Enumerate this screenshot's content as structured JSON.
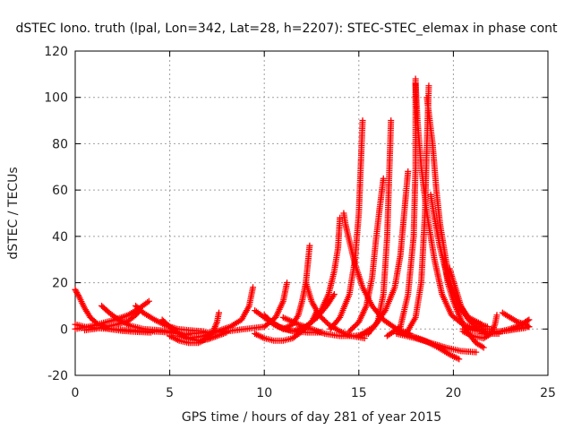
{
  "chart_data": {
    "type": "scatter",
    "title": "dSTEC Iono. truth (lpal, Lon=342, Lat=28, h=2207): STEC-STEC_elemax in phase cont",
    "xlabel": "GPS time / hours of day 281 of year 2015",
    "ylabel": "dSTEC  / TECUs",
    "xlim": [
      0,
      25
    ],
    "ylim": [
      -20,
      120
    ],
    "xticks": [
      0,
      5,
      10,
      15,
      20,
      25
    ],
    "yticks": [
      -20,
      0,
      20,
      40,
      60,
      80,
      100,
      120
    ],
    "grid": true,
    "marker": "+",
    "color": "#ff0000",
    "series": [
      {
        "points": [
          [
            0.0,
            2
          ],
          [
            0.5,
            1
          ],
          [
            1.0,
            0.5
          ],
          [
            1.5,
            0.2
          ],
          [
            2.0,
            0
          ],
          [
            2.5,
            -0.3
          ],
          [
            3.0,
            -0.5
          ],
          [
            3.5,
            -0.8
          ],
          [
            4.0,
            -1
          ],
          [
            4.5,
            -1.2
          ],
          [
            5.0,
            -1.5
          ],
          [
            5.5,
            -2
          ],
          [
            6.0,
            -2.5
          ]
        ]
      },
      {
        "points": [
          [
            0.0,
            17
          ],
          [
            0.2,
            14
          ],
          [
            0.5,
            9
          ],
          [
            0.8,
            5
          ],
          [
            1.2,
            2
          ],
          [
            1.8,
            0
          ],
          [
            2.5,
            -0.8
          ],
          [
            3.2,
            -1.2
          ],
          [
            4.0,
            -1.5
          ]
        ]
      },
      {
        "points": [
          [
            0.0,
            0
          ],
          [
            0.7,
            1
          ],
          [
            1.4,
            2.5
          ],
          [
            2.1,
            4
          ],
          [
            2.8,
            6
          ],
          [
            3.4,
            9
          ],
          [
            3.9,
            12
          ]
        ]
      },
      {
        "points": [
          [
            1.4,
            10
          ],
          [
            1.8,
            7
          ],
          [
            2.3,
            4
          ],
          [
            2.9,
            1.5
          ],
          [
            3.6,
            0
          ],
          [
            4.4,
            -0.5
          ],
          [
            5.2,
            -1
          ]
        ]
      },
      {
        "points": [
          [
            0.5,
            -0.5
          ],
          [
            1.0,
            0
          ],
          [
            1.6,
            1
          ],
          [
            2.2,
            2
          ],
          [
            2.8,
            3.5
          ],
          [
            3.2,
            6
          ],
          [
            3.4,
            8
          ]
        ]
      },
      {
        "points": [
          [
            3.2,
            10
          ],
          [
            3.6,
            7
          ],
          [
            4.2,
            4
          ],
          [
            4.8,
            1.5
          ],
          [
            5.4,
            0
          ],
          [
            6.0,
            -0.5
          ],
          [
            6.8,
            -1
          ]
        ]
      },
      {
        "points": [
          [
            4.6,
            4
          ],
          [
            5.0,
            1
          ],
          [
            5.5,
            -2
          ],
          [
            6.0,
            -4
          ],
          [
            6.5,
            -5
          ],
          [
            7.0,
            -4.5
          ],
          [
            7.5,
            -3
          ],
          [
            8.0,
            -1.5
          ]
        ]
      },
      {
        "points": [
          [
            5.0,
            -3
          ],
          [
            5.5,
            -5
          ],
          [
            6.0,
            -6
          ],
          [
            6.5,
            -6
          ],
          [
            7.0,
            -4
          ],
          [
            7.3,
            -1
          ],
          [
            7.5,
            3
          ],
          [
            7.6,
            7
          ]
        ]
      },
      {
        "points": [
          [
            5.5,
            -3
          ],
          [
            6.0,
            -4
          ],
          [
            6.8,
            -3
          ],
          [
            7.5,
            -1
          ],
          [
            8.2,
            1
          ],
          [
            8.8,
            4
          ],
          [
            9.2,
            10
          ],
          [
            9.4,
            18
          ]
        ]
      },
      {
        "points": [
          [
            6.0,
            -2
          ],
          [
            7.0,
            -1.5
          ],
          [
            8.0,
            -1
          ],
          [
            9.0,
            0
          ],
          [
            10.0,
            1
          ],
          [
            10.6,
            5
          ],
          [
            11.0,
            12
          ],
          [
            11.2,
            20
          ]
        ]
      },
      {
        "points": [
          [
            9.5,
            8
          ],
          [
            10.0,
            5
          ],
          [
            10.5,
            2
          ],
          [
            11.0,
            0
          ],
          [
            11.6,
            -1
          ],
          [
            12.3,
            -1.5
          ],
          [
            13.0,
            -1.5
          ]
        ]
      },
      {
        "points": [
          [
            10.0,
            6
          ],
          [
            10.4,
            3
          ],
          [
            10.8,
            1
          ],
          [
            11.5,
            -1
          ],
          [
            12.2,
            1
          ],
          [
            12.8,
            5
          ],
          [
            13.3,
            10
          ],
          [
            13.7,
            15
          ]
        ]
      },
      {
        "points": [
          [
            9.5,
            -2
          ],
          [
            10.0,
            -4
          ],
          [
            10.5,
            -5
          ],
          [
            11.0,
            -5
          ],
          [
            11.5,
            -4
          ],
          [
            12.0,
            -1
          ],
          [
            12.5,
            3
          ],
          [
            12.8,
            8
          ]
        ]
      },
      {
        "points": [
          [
            11.0,
            0
          ],
          [
            11.5,
            2
          ],
          [
            11.8,
            6
          ],
          [
            12.0,
            12
          ],
          [
            12.2,
            20
          ],
          [
            12.3,
            28
          ],
          [
            12.4,
            36
          ]
        ]
      },
      {
        "points": [
          [
            11.0,
            5
          ],
          [
            11.8,
            2
          ],
          [
            12.5,
            0
          ],
          [
            13.2,
            -2
          ],
          [
            14.0,
            -3
          ],
          [
            14.8,
            -3
          ],
          [
            15.5,
            -2
          ]
        ]
      },
      {
        "points": [
          [
            12.0,
            0
          ],
          [
            12.5,
            3
          ],
          [
            13.0,
            8
          ],
          [
            13.4,
            15
          ],
          [
            13.7,
            25
          ],
          [
            13.9,
            35
          ],
          [
            14.0,
            48
          ]
        ]
      },
      {
        "points": [
          [
            12.2,
            20
          ],
          [
            12.5,
            12
          ],
          [
            12.9,
            6
          ],
          [
            13.4,
            2
          ],
          [
            14.0,
            -1
          ],
          [
            14.6,
            -3
          ],
          [
            15.3,
            -4
          ]
        ]
      },
      {
        "points": [
          [
            14.2,
            50
          ],
          [
            14.3,
            45
          ],
          [
            14.5,
            38
          ],
          [
            14.8,
            28
          ],
          [
            15.2,
            18
          ],
          [
            15.7,
            10
          ],
          [
            16.3,
            4
          ],
          [
            17.0,
            0
          ],
          [
            17.7,
            -2
          ]
        ]
      },
      {
        "points": [
          [
            13.5,
            0
          ],
          [
            14.0,
            5
          ],
          [
            14.5,
            15
          ],
          [
            14.8,
            30
          ],
          [
            15.0,
            50
          ],
          [
            15.1,
            70
          ],
          [
            15.2,
            90
          ]
        ]
      },
      {
        "points": [
          [
            14.5,
            -1
          ],
          [
            15.0,
            3
          ],
          [
            15.4,
            10
          ],
          [
            15.7,
            22
          ],
          [
            15.9,
            38
          ],
          [
            16.1,
            52
          ],
          [
            16.3,
            65
          ]
        ]
      },
      {
        "points": [
          [
            15.5,
            -2
          ],
          [
            16.0,
            3
          ],
          [
            16.3,
            15
          ],
          [
            16.5,
            40
          ],
          [
            16.6,
            65
          ],
          [
            16.7,
            90
          ]
        ]
      },
      {
        "points": [
          [
            15.0,
            -3
          ],
          [
            15.8,
            1
          ],
          [
            16.4,
            8
          ],
          [
            16.9,
            18
          ],
          [
            17.2,
            32
          ],
          [
            17.4,
            50
          ],
          [
            17.6,
            68
          ]
        ]
      },
      {
        "points": [
          [
            16.5,
            -3
          ],
          [
            17.2,
            1
          ],
          [
            17.6,
            15
          ],
          [
            17.9,
            40
          ],
          [
            18.0,
            70
          ],
          [
            18.0,
            108
          ]
        ]
      },
      {
        "points": [
          [
            18.0,
            106
          ],
          [
            18.1,
            90
          ],
          [
            18.3,
            70
          ],
          [
            18.6,
            50
          ],
          [
            19.0,
            30
          ],
          [
            19.4,
            15
          ],
          [
            19.9,
            6
          ],
          [
            20.5,
            2
          ],
          [
            21.2,
            0
          ],
          [
            22.0,
            0
          ]
        ]
      },
      {
        "points": [
          [
            17.5,
            -2
          ],
          [
            18.0,
            5
          ],
          [
            18.3,
            20
          ],
          [
            18.5,
            50
          ],
          [
            18.6,
            80
          ],
          [
            18.7,
            105
          ]
        ]
      },
      {
        "points": [
          [
            18.6,
            100
          ],
          [
            18.9,
            80
          ],
          [
            19.1,
            60
          ],
          [
            19.3,
            45
          ],
          [
            19.6,
            30
          ],
          [
            19.9,
            18
          ],
          [
            20.4,
            8
          ],
          [
            21.0,
            3
          ],
          [
            21.8,
            1
          ]
        ]
      },
      {
        "points": [
          [
            18.8,
            58
          ],
          [
            19.0,
            48
          ],
          [
            19.3,
            35
          ],
          [
            19.7,
            22
          ],
          [
            20.2,
            12
          ],
          [
            20.8,
            5
          ],
          [
            21.5,
            2
          ]
        ]
      },
      {
        "points": [
          [
            17.0,
            -1
          ],
          [
            17.8,
            -3
          ],
          [
            18.5,
            -5
          ],
          [
            19.2,
            -8
          ],
          [
            19.8,
            -11
          ],
          [
            20.3,
            -13
          ]
        ]
      },
      {
        "points": [
          [
            19.5,
            30
          ],
          [
            19.7,
            20
          ],
          [
            20.0,
            12
          ],
          [
            20.4,
            4
          ],
          [
            20.8,
            -2
          ],
          [
            21.2,
            -6
          ],
          [
            21.6,
            -8
          ]
        ]
      },
      {
        "points": [
          [
            17.0,
            -2
          ],
          [
            18.0,
            -4
          ],
          [
            18.8,
            -6
          ],
          [
            19.6,
            -8
          ],
          [
            20.4,
            -9.5
          ],
          [
            21.2,
            -10
          ]
        ]
      },
      {
        "points": [
          [
            19.8,
            26
          ],
          [
            20.1,
            18
          ],
          [
            20.4,
            10
          ],
          [
            20.8,
            4
          ],
          [
            21.3,
            0
          ],
          [
            21.8,
            -2
          ],
          [
            22.4,
            -2
          ]
        ]
      },
      {
        "points": [
          [
            20.5,
            -1
          ],
          [
            21.0,
            -3
          ],
          [
            21.6,
            -4
          ],
          [
            22.0,
            -2
          ],
          [
            22.2,
            2
          ],
          [
            22.3,
            6
          ]
        ]
      },
      {
        "points": [
          [
            20.5,
            0
          ],
          [
            21.5,
            -1
          ],
          [
            22.5,
            -1
          ],
          [
            23.3,
            0
          ],
          [
            24.0,
            1
          ]
        ]
      },
      {
        "points": [
          [
            22.6,
            7
          ],
          [
            23.0,
            5
          ],
          [
            23.4,
            3
          ],
          [
            23.8,
            2
          ],
          [
            24.0,
            1
          ]
        ]
      },
      {
        "points": [
          [
            22.5,
            -1
          ],
          [
            23.0,
            0
          ],
          [
            23.5,
            1.5
          ],
          [
            23.8,
            3
          ],
          [
            24.0,
            4
          ]
        ]
      },
      {
        "points": [
          [
            21.5,
            -2
          ],
          [
            22.2,
            -1.5
          ],
          [
            23.0,
            -0.5
          ],
          [
            23.8,
            0.5
          ]
        ]
      }
    ]
  }
}
